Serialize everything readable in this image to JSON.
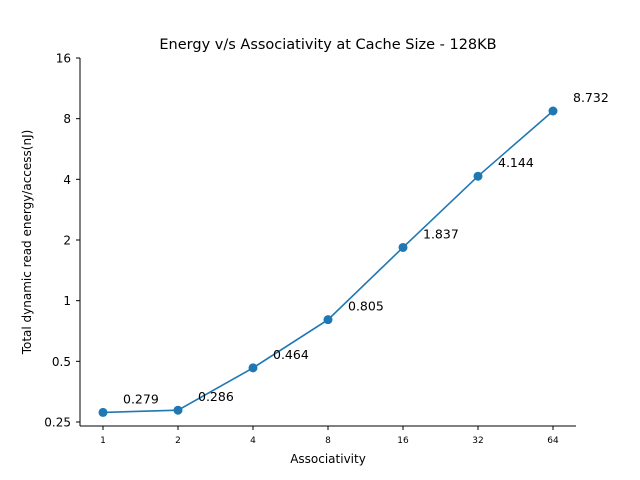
{
  "chart_data": {
    "type": "line",
    "title": "Energy v/s Associativity at Cache Size - 128KB",
    "xlabel": "Associativity",
    "ylabel": "Total dynamic read energy/access(nJ)",
    "x_scale": "log2",
    "y_scale": "log2",
    "x": [
      1,
      2,
      4,
      8,
      16,
      32,
      64
    ],
    "xtick_labels": [
      "1",
      "2",
      "4",
      "8",
      "16",
      "32",
      "64"
    ],
    "ytick_values": [
      0.25,
      0.5,
      1,
      2,
      4,
      8,
      16
    ],
    "ytick_labels": [
      "0.25",
      "0.5",
      "1",
      "2",
      "4",
      "8",
      "16"
    ],
    "ylim": [
      0.25,
      16
    ],
    "series": [
      {
        "values": [
          0.279,
          0.286,
          0.464,
          0.805,
          1.837,
          4.144,
          8.732
        ],
        "labels": [
          "0.279",
          "0.286",
          "0.464",
          "0.805",
          "1.837",
          "4.144",
          "8.732"
        ],
        "color": "#1f77b4",
        "marker": "circle"
      }
    ],
    "grid": false,
    "legend": "none"
  }
}
